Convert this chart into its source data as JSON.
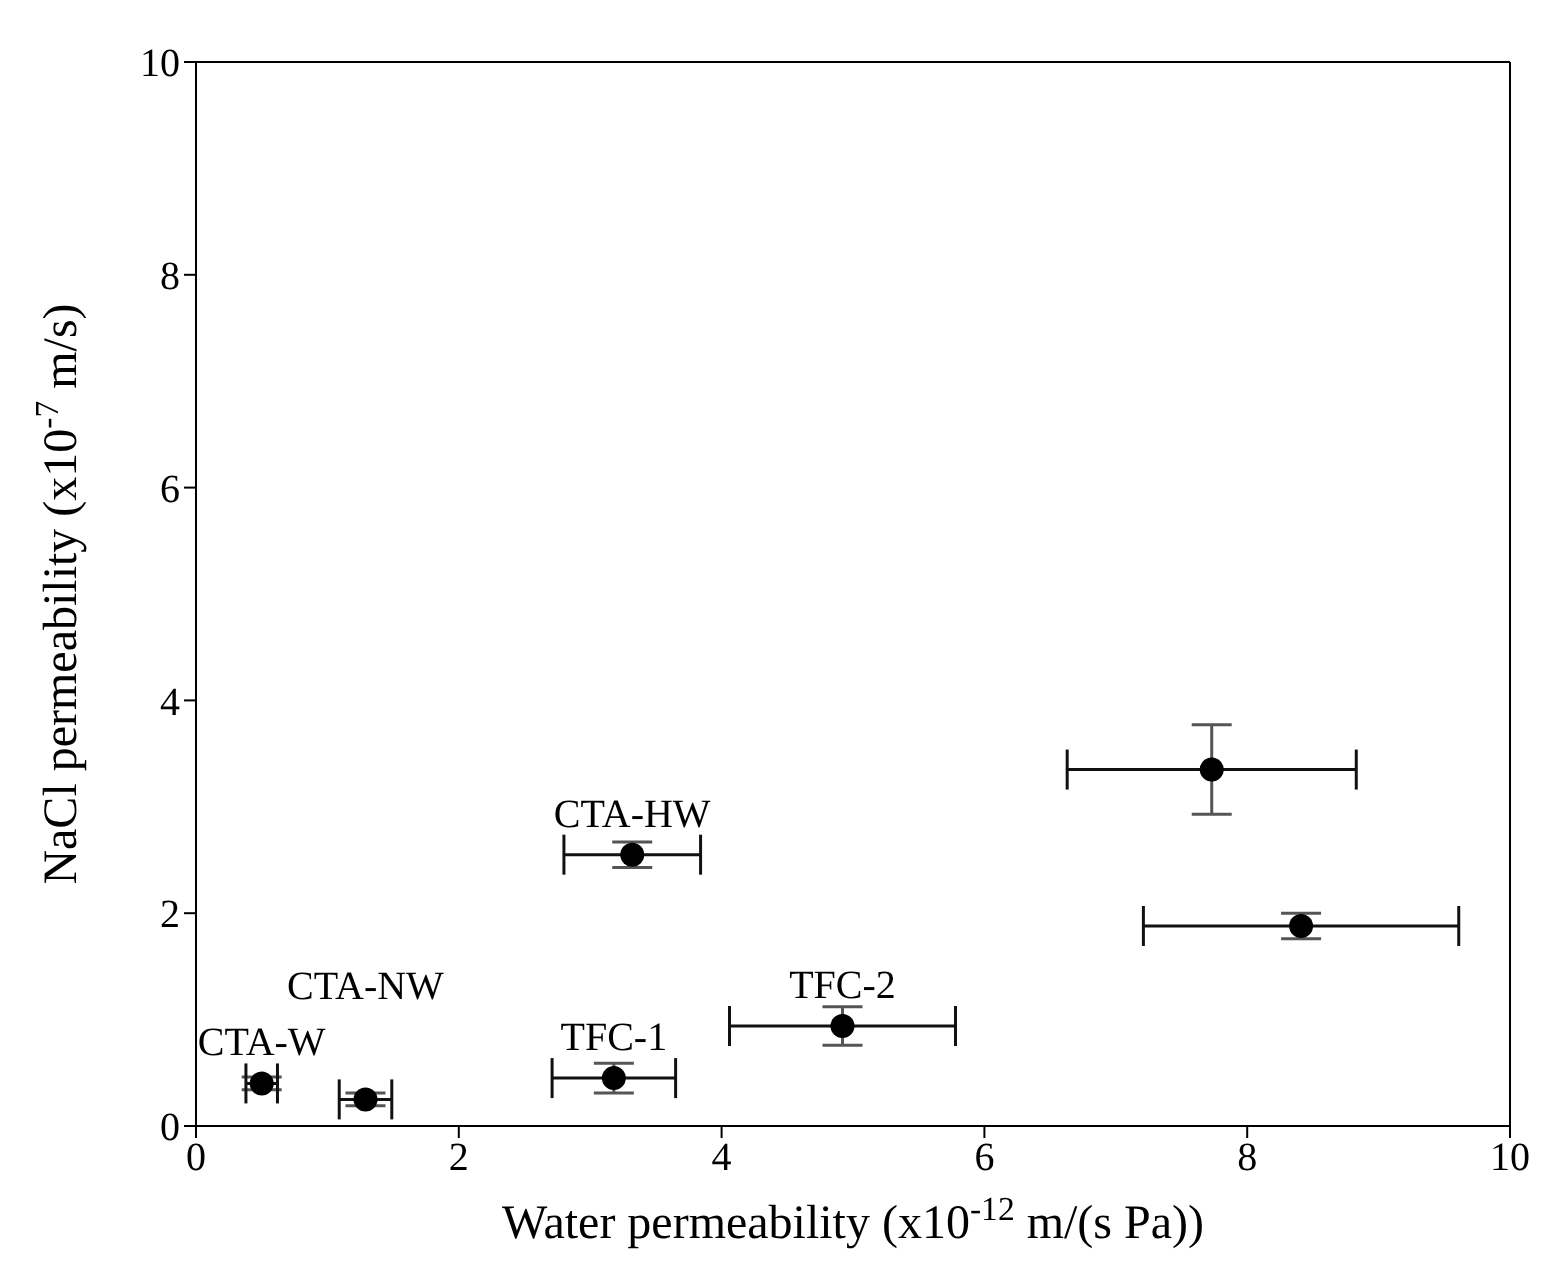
{
  "chart_data": {
    "type": "scatter",
    "xlabel": "Water permeability (x10$^{-12}$ m/(s Pa))",
    "ylabel": "NaCl permeability (x10$^{-7}$ m/s)",
    "x": [
      0.5,
      1.29,
      3.18,
      3.32,
      4.92,
      7.73,
      8.41
    ],
    "series": [
      {
        "color": "#000000",
        "values": [
          0.4,
          0.25,
          0.45,
          2.55,
          0.94,
          3.35,
          1.88
        ],
        "errors": [
          0.06,
          0.06,
          0.14,
          0.12,
          0.18,
          0.42,
          0.12
        ],
        "xerrors": [
          0.12,
          0.2,
          0.47,
          0.52,
          0.86,
          1.1,
          1.2
        ]
      }
    ],
    "xlim": [
      0,
      10
    ],
    "ylim": [
      0,
      10
    ],
    "xticks": [
      0,
      2,
      4,
      6,
      8,
      10
    ],
    "yticks": [
      0,
      2,
      4,
      6,
      8,
      10
    ],
    "marker": "circle",
    "grid": false,
    "legend": false,
    "annotations": [
      {
        "text": "CTA-W",
        "x": 0.5,
        "y": 0.4
      },
      {
        "text": "CTA-NW",
        "x": 1.29,
        "y": 0.25
      },
      {
        "text": "TFC-1",
        "x": 3.18,
        "y": 0.45
      },
      {
        "text": "CTA-HW",
        "x": 3.32,
        "y": 2.55
      },
      {
        "text": "TFC-2",
        "x": 4.92,
        "y": 0.94
      }
    ]
  }
}
